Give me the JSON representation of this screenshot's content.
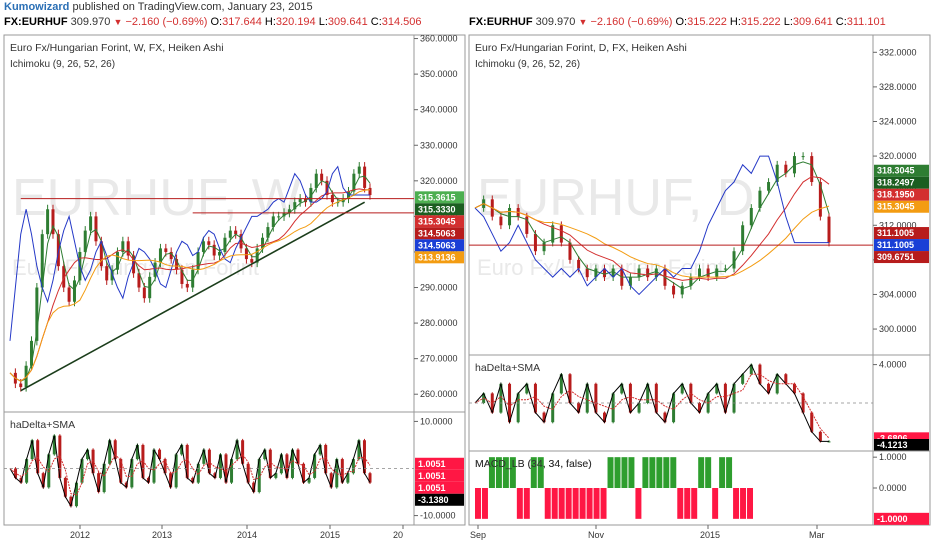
{
  "header": {
    "author": "Kumowizard",
    "published": "published on TradingView.com, January 23, 2015"
  },
  "left_quote": {
    "symbol": "FX:EURHUF",
    "last": "309.970",
    "change": "−2.160 (−0.69%)",
    "o_label": "O:",
    "o": "317.644",
    "h_label": "H:",
    "h": "320.194",
    "l_label": "L:",
    "l": "309.641",
    "c_label": "C:",
    "c": "314.506"
  },
  "right_quote": {
    "symbol": "FX:EURHUF",
    "last": "309.970",
    "change": "−2.160 (−0.69%)",
    "o_label": "O:",
    "o": "315.222",
    "h_label": "H:",
    "h": "315.222",
    "l_label": "L:",
    "l": "309.641",
    "c_label": "C:",
    "c": "311.101"
  },
  "chart_data": [
    {
      "type": "line",
      "title": "Euro Fx/Hungarian Forint, W, FX, Heiken Ashi",
      "subtitle": "Ichimoku (9, 26, 52, 26)",
      "watermark": "EURHUF, W",
      "watermark_sub": "Euro Fx/Hungarian Forint",
      "x_ticks": [
        "2012",
        "2013",
        "2014",
        "2015",
        "20"
      ],
      "y_ticks": [
        260,
        270,
        280,
        290,
        300,
        310,
        320,
        330,
        340,
        350,
        360
      ],
      "y_tick_labels": [
        "260.0000",
        "270.0000",
        "280.0000",
        "290.0000",
        "300.0000",
        "310.0000",
        "320.0000",
        "330.0000",
        "340.0000",
        "350.0000",
        "360.0000"
      ],
      "ylim": [
        255,
        361
      ],
      "series": [
        {
          "values": [
            266,
            263,
            262,
            268,
            275,
            290,
            305,
            312,
            305,
            296,
            290,
            286,
            292,
            300,
            306,
            310,
            303,
            296,
            292,
            295,
            300,
            303,
            299,
            294,
            290,
            287,
            293,
            297,
            301,
            300,
            298,
            295,
            291,
            290,
            295,
            300,
            303,
            302,
            299,
            300,
            304,
            306,
            305,
            301,
            298,
            297,
            301,
            304,
            307,
            310,
            310,
            311,
            312,
            314,
            315,
            314,
            318,
            322,
            320,
            316,
            314,
            314,
            315,
            317,
            322,
            324,
            318,
            316
          ]
        }
      ],
      "price_tags": [
        {
          "value": 315.3615,
          "label": "315.3615",
          "color": "#4caf50"
        },
        {
          "value": 315.333,
          "label": "315.3330",
          "color": "#1b5e20"
        },
        {
          "value": 315.3045,
          "label": "315.3045",
          "color": "#d32f2f"
        },
        {
          "value": 314.5063,
          "label": "314.5063",
          "color": "#b71c1c"
        },
        {
          "value": 314.5063,
          "label": "314.5063",
          "color": "#1a3fd6"
        },
        {
          "value": 313.9136,
          "label": "313.9136",
          "color": "#f39c12"
        }
      ]
    },
    {
      "type": "line",
      "title": "haDelta+SMA",
      "y_ticks": [
        -10,
        10
      ],
      "y_tick_labels": [
        "-10.0000",
        "10.0000"
      ],
      "ylim": [
        -12,
        12
      ],
      "series": [
        {
          "values": [
            0,
            -2,
            -3,
            2,
            6,
            -1,
            -4,
            3,
            7,
            -2,
            -6,
            -8,
            -3,
            2,
            4,
            -1,
            -5,
            1,
            6,
            2,
            -3,
            -4,
            2,
            5,
            -2,
            -3,
            4,
            2,
            -1,
            -4,
            3,
            5,
            -2,
            -3,
            1,
            4,
            -1,
            -2,
            3,
            -3,
            2,
            6,
            1,
            -3,
            -5,
            2,
            4,
            -2,
            -1,
            3,
            -2,
            4,
            1,
            -3,
            -2,
            3,
            5,
            -1,
            -4,
            2,
            -3,
            -1,
            2,
            6,
            -1,
            -3
          ]
        }
      ],
      "price_tags": [
        {
          "value": 1.0051,
          "label": "1.0051",
          "color": "#ff1744"
        },
        {
          "value": 1.0051,
          "label": "1.0051",
          "color": "#ff1744"
        },
        {
          "value": 1.0051,
          "label": "1.0051",
          "color": "#ff1744"
        },
        {
          "value": -3.138,
          "label": "-3.1380",
          "color": "#000000"
        }
      ]
    },
    {
      "type": "line",
      "title": "Euro Fx/Hungarian Forint, D, FX, Heiken Ashi",
      "subtitle": "Ichimoku (9, 26, 52, 26)",
      "watermark": "EURHUF, D",
      "watermark_sub": "Euro Fx/Hungarian Forint",
      "x_ticks": [
        "Sep",
        "Nov",
        "2015",
        "Mar"
      ],
      "y_ticks": [
        300,
        304,
        308,
        312,
        316,
        320,
        324,
        328,
        332
      ],
      "y_tick_labels": [
        "300.0000",
        "304.0000",
        "308.0000",
        "312.0000",
        "316.0000",
        "320.0000",
        "324.0000",
        "328.0000",
        "332.0000"
      ],
      "ylim": [
        297,
        334
      ],
      "series": [
        {
          "values": [
            314,
            315,
            313,
            312,
            314,
            313,
            311,
            309,
            310,
            312,
            310,
            308,
            307,
            306,
            307,
            306,
            307,
            305,
            306,
            307,
            306,
            307,
            305,
            304,
            305,
            306,
            307,
            306,
            307,
            307,
            309,
            312,
            314,
            316,
            317,
            319,
            318,
            320,
            320,
            317,
            313,
            310
          ]
        }
      ],
      "price_tags": [
        {
          "value": 318.3045,
          "label": "318.3045",
          "color": "#2e7d32"
        },
        {
          "value": 318.2497,
          "label": "318.2497",
          "color": "#1b5e20"
        },
        {
          "value": 318.195,
          "label": "318.1950",
          "color": "#d32f2f"
        },
        {
          "value": 315.3045,
          "label": "315.3045",
          "color": "#f39c12"
        },
        {
          "value": 311.1005,
          "label": "311.1005",
          "color": "#b71c1c"
        },
        {
          "value": 311.1005,
          "label": "311.1005",
          "color": "#1a3fd6"
        },
        {
          "value": 309.6751,
          "label": "309.6751",
          "color": "#b71c1c"
        }
      ]
    },
    {
      "type": "line",
      "title": "haDelta+SMA",
      "y_ticks": [
        4
      ],
      "y_tick_labels": [
        "4.0000"
      ],
      "ylim": [
        -5,
        5
      ],
      "series": [
        {
          "values": [
            0,
            1,
            -1,
            2,
            -2,
            1,
            2,
            -1,
            -2,
            1,
            3,
            0,
            -1,
            2,
            -1,
            -2,
            1,
            2,
            -1,
            0,
            2,
            -1,
            -2,
            1,
            2,
            0,
            -1,
            1,
            2,
            -1,
            2,
            3,
            4,
            2,
            1,
            3,
            2,
            1,
            -1,
            -3,
            -4,
            -4
          ]
        }
      ],
      "price_tags": [
        {
          "value": -3.6806,
          "label": "-3.6806",
          "color": "#ff1744"
        },
        {
          "value": -3.6806,
          "label": "-3.6806",
          "color": "#ff1744"
        },
        {
          "value": -3.6806,
          "label": "-3.6806",
          "color": "#ff1744"
        },
        {
          "value": -4.1213,
          "label": "-4.1213",
          "color": "#000000"
        }
      ]
    },
    {
      "type": "bar",
      "title": "MACD_LB (34, 34, false)",
      "y_ticks": [
        1,
        0
      ],
      "y_tick_labels": [
        "1.0000",
        "0.0000"
      ],
      "ylim": [
        -1.2,
        1.2
      ],
      "values": [
        -1,
        -1,
        1,
        1,
        1,
        1,
        -1,
        -1,
        1,
        1,
        -1,
        -1,
        -1,
        -1,
        -1,
        -1,
        -1,
        -1,
        -1,
        1,
        1,
        1,
        1,
        -1,
        1,
        1,
        1,
        1,
        1,
        -1,
        -1,
        -1,
        1,
        1,
        -1,
        1,
        1,
        -1,
        -1,
        -1
      ],
      "price_tags": [
        {
          "value": -1,
          "label": "-1.0000",
          "color": "#ff1744"
        }
      ]
    }
  ]
}
